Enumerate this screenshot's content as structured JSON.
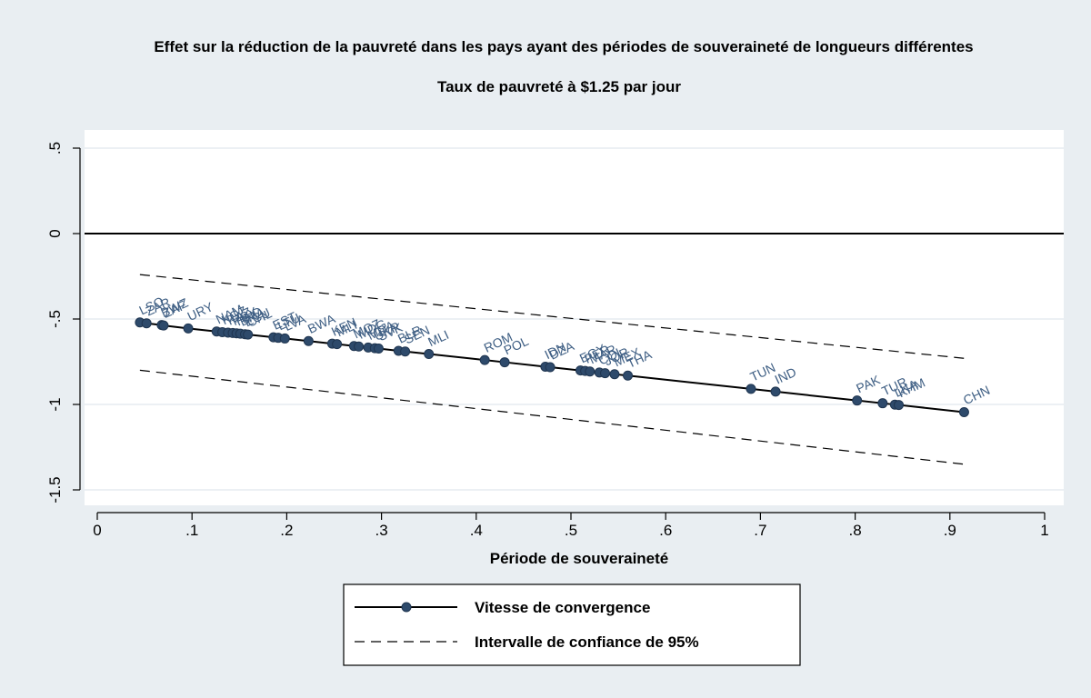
{
  "chart_data": {
    "type": "scatter",
    "title": "Effet sur la réduction de la pauvreté dans les pays ayant des périodes de souveraineté de longueurs différentes",
    "subtitle": "Taux de pauvreté à $1.25 par jour",
    "xlabel": "Période de souveraineté",
    "ylabel": "",
    "xlim": [
      -0.03,
      1.03
    ],
    "ylim": [
      -1.62,
      0.6
    ],
    "xticks": [
      {
        "value": 0,
        "label": "0"
      },
      {
        "value": 0.1,
        "label": ".1"
      },
      {
        "value": 0.2,
        "label": ".2"
      },
      {
        "value": 0.3,
        "label": ".3"
      },
      {
        "value": 0.4,
        "label": ".4"
      },
      {
        "value": 0.5,
        "label": ".5"
      },
      {
        "value": 0.6,
        "label": ".6"
      },
      {
        "value": 0.7,
        "label": ".7"
      },
      {
        "value": 0.8,
        "label": ".8"
      },
      {
        "value": 0.9,
        "label": ".9"
      },
      {
        "value": 1,
        "label": "1"
      }
    ],
    "yticks": [
      {
        "value": 0.5,
        "label": ".5"
      },
      {
        "value": 0,
        "label": "0"
      },
      {
        "value": -0.5,
        "label": "-.5"
      },
      {
        "value": -1,
        "label": "-1"
      },
      {
        "value": -1.5,
        "label": "-1.5"
      }
    ],
    "grid": "horizontal",
    "reference_line_y": 0,
    "series": [
      {
        "name": "Vitesse de convergence",
        "style": "solid-with-markers",
        "color": "#000000",
        "marker_color": "#2e4a6b",
        "label_color": "#3f5f84",
        "points": [
          {
            "label": "LSO",
            "x": 0.045,
            "y": -0.52
          },
          {
            "label": "ZAR",
            "x": 0.052,
            "y": -0.525
          },
          {
            "label": "BWZ",
            "x": 0.068,
            "y": -0.535
          },
          {
            "label": "ZAF",
            "x": 0.07,
            "y": -0.538
          },
          {
            "label": "URY",
            "x": 0.096,
            "y": -0.555
          },
          {
            "label": "NAM",
            "x": 0.126,
            "y": -0.573
          },
          {
            "label": "KGZ",
            "x": 0.132,
            "y": -0.577
          },
          {
            "label": "KAZ",
            "x": 0.138,
            "y": -0.58
          },
          {
            "label": "PRY",
            "x": 0.143,
            "y": -0.582
          },
          {
            "label": "HND",
            "x": 0.147,
            "y": -0.584
          },
          {
            "label": "BRA",
            "x": 0.151,
            "y": -0.586
          },
          {
            "label": "ECU",
            "x": 0.156,
            "y": -0.589
          },
          {
            "label": "CHL",
            "x": 0.159,
            "y": -0.591
          },
          {
            "label": "EST",
            "x": 0.186,
            "y": -0.607
          },
          {
            "label": "LTU",
            "x": 0.191,
            "y": -0.61
          },
          {
            "label": "LVA",
            "x": 0.198,
            "y": -0.614
          },
          {
            "label": "BWA",
            "x": 0.223,
            "y": -0.629
          },
          {
            "label": "KEN",
            "x": 0.248,
            "y": -0.644
          },
          {
            "label": "MLI",
            "x": 0.253,
            "y": -0.647
          },
          {
            "label": "MOZ",
            "x": 0.271,
            "y": -0.658
          },
          {
            "label": "MDG",
            "x": 0.276,
            "y": -0.661
          },
          {
            "label": "MDA",
            "x": 0.286,
            "y": -0.667
          },
          {
            "label": "UKR",
            "x": 0.293,
            "y": -0.671
          },
          {
            "label": "SVK",
            "x": 0.297,
            "y": -0.673
          },
          {
            "label": "BLR",
            "x": 0.318,
            "y": -0.686
          },
          {
            "label": "SEN",
            "x": 0.325,
            "y": -0.69
          },
          {
            "label": "MLI",
            "x": 0.35,
            "y": -0.705
          },
          {
            "label": "ROM",
            "x": 0.409,
            "y": -0.74
          },
          {
            "label": "POL",
            "x": 0.43,
            "y": -0.753
          },
          {
            "label": "IDN",
            "x": 0.473,
            "y": -0.779
          },
          {
            "label": "DZA",
            "x": 0.478,
            "y": -0.782
          },
          {
            "label": "EGY",
            "x": 0.51,
            "y": -0.801
          },
          {
            "label": "PER",
            "x": 0.515,
            "y": -0.804
          },
          {
            "label": "MAR",
            "x": 0.52,
            "y": -0.807
          },
          {
            "label": "COL",
            "x": 0.53,
            "y": -0.813
          },
          {
            "label": "JOR",
            "x": 0.536,
            "y": -0.817
          },
          {
            "label": "MEX",
            "x": 0.546,
            "y": -0.823
          },
          {
            "label": "THA",
            "x": 0.56,
            "y": -0.831
          },
          {
            "label": "TUN",
            "x": 0.69,
            "y": -0.909
          },
          {
            "label": "IND",
            "x": 0.716,
            "y": -0.925
          },
          {
            "label": "PAK",
            "x": 0.802,
            "y": -0.977
          },
          {
            "label": "TUR",
            "x": 0.829,
            "y": -0.993
          },
          {
            "label": "LKA",
            "x": 0.842,
            "y": -1.001
          },
          {
            "label": "KHM",
            "x": 0.846,
            "y": -1.003
          },
          {
            "label": "CHN",
            "x": 0.915,
            "y": -1.045
          }
        ]
      },
      {
        "name": "Intervalle de confiance de 95%",
        "style": "dashed",
        "color": "#000000",
        "upper": [
          {
            "x": 0.045,
            "y": -0.24
          },
          {
            "x": 0.915,
            "y": -0.73
          }
        ],
        "lower": [
          {
            "x": 0.045,
            "y": -0.8
          },
          {
            "x": 0.915,
            "y": -1.35
          }
        ]
      }
    ],
    "legend": {
      "position": "bottom-center",
      "items": [
        "Vitesse de convergence",
        "Intervalle de confiance de 95%"
      ]
    }
  }
}
